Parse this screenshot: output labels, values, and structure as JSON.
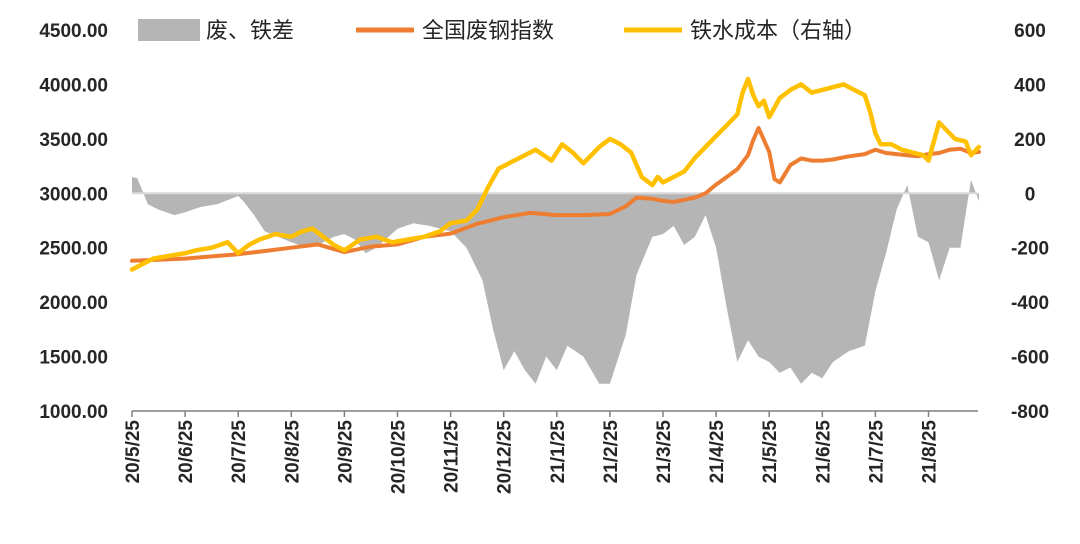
{
  "chart_data": {
    "type": "line",
    "title": "",
    "xlabel": "",
    "ylabel": "",
    "left_axis": {
      "ylim": [
        1000,
        4500
      ],
      "ticks": [
        "1000.00",
        "1500.00",
        "2000.00",
        "2500.00",
        "3000.00",
        "3500.00",
        "4000.00",
        "4500.00"
      ]
    },
    "right_axis": {
      "ylim": [
        -800,
        600
      ],
      "ticks": [
        "-800",
        "-600",
        "-400",
        "-200",
        "0",
        "200",
        "400",
        "600"
      ]
    },
    "x_ticks": [
      "20/5/25",
      "20/6/25",
      "20/7/25",
      "20/8/25",
      "20/9/25",
      "20/10/25",
      "20/11/25",
      "20/12/25",
      "21/1/25",
      "21/2/25",
      "21/3/25",
      "21/4/25",
      "21/5/25",
      "21/6/25",
      "21/7/25",
      "21/8/25"
    ],
    "x_range_months": [
      0,
      15.95
    ],
    "legend": {
      "placement": "top",
      "entries": [
        "废、铁差",
        "全国废钢指数",
        "铁水成本（右轴）"
      ]
    },
    "series": [
      {
        "name": "废、铁差",
        "kind": "area",
        "axis": "right",
        "color": "#b5b5b5",
        "x": [
          0,
          0.1,
          0.3,
          0.5,
          0.8,
          1,
          1.3,
          1.6,
          2,
          2.1,
          2.3,
          2.5,
          3,
          3.3,
          3.5,
          3.8,
          4,
          4.2,
          4.4,
          4.6,
          5,
          5.3,
          5.6,
          6,
          6.3,
          6.6,
          6.8,
          7,
          7.2,
          7.4,
          7.6,
          7.8,
          8,
          8.2,
          8.5,
          8.8,
          9,
          9.3,
          9.5,
          9.8,
          10,
          10.2,
          10.4,
          10.6,
          10.8,
          11,
          11.2,
          11.4,
          11.6,
          11.8,
          12,
          12.2,
          12.4,
          12.6,
          12.8,
          13,
          13.2,
          13.5,
          13.8,
          14,
          14.2,
          14.4,
          14.6,
          14.8,
          15,
          15.2,
          15.4,
          15.6,
          15.8,
          15.95
        ],
        "y": [
          60,
          55,
          -40,
          -60,
          -80,
          -70,
          -50,
          -40,
          -10,
          -30,
          -80,
          -140,
          -180,
          -200,
          -190,
          -160,
          -150,
          -170,
          -220,
          -200,
          -130,
          -110,
          -120,
          -140,
          -200,
          -320,
          -500,
          -650,
          -580,
          -650,
          -700,
          -600,
          -650,
          -560,
          -600,
          -700,
          -700,
          -520,
          -300,
          -160,
          -150,
          -120,
          -190,
          -160,
          -80,
          -200,
          -420,
          -620,
          -540,
          -600,
          -620,
          -660,
          -640,
          -700,
          -660,
          -680,
          -620,
          -580,
          -560,
          -360,
          -220,
          -60,
          30,
          -160,
          -180,
          -320,
          -200,
          -200,
          50,
          -30
        ]
      },
      {
        "name": "全国废钢指数",
        "kind": "line",
        "axis": "left",
        "color": "#ed7d31",
        "x": [
          0,
          0.5,
          1,
          1.5,
          2,
          2.5,
          3,
          3.5,
          4,
          4.5,
          5,
          5.5,
          6,
          6.5,
          7,
          7.5,
          8,
          8.5,
          9,
          9.3,
          9.5,
          9.8,
          10,
          10.2,
          10.4,
          10.6,
          10.8,
          11,
          11.2,
          11.4,
          11.6,
          11.7,
          11.8,
          12,
          12.1,
          12.2,
          12.4,
          12.6,
          12.8,
          13,
          13.2,
          13.5,
          13.8,
          14,
          14.2,
          14.4,
          14.6,
          14.8,
          15,
          15.2,
          15.4,
          15.6,
          15.8,
          15.95
        ],
        "y": [
          2380,
          2390,
          2400,
          2420,
          2440,
          2470,
          2500,
          2530,
          2460,
          2510,
          2530,
          2600,
          2630,
          2720,
          2780,
          2820,
          2800,
          2800,
          2810,
          2880,
          2960,
          2950,
          2930,
          2920,
          2940,
          2960,
          3000,
          3080,
          3150,
          3220,
          3350,
          3490,
          3600,
          3380,
          3130,
          3100,
          3260,
          3320,
          3300,
          3300,
          3310,
          3340,
          3360,
          3400,
          3370,
          3360,
          3350,
          3340,
          3360,
          3370,
          3400,
          3410,
          3370,
          3380
        ]
      },
      {
        "name": "铁水成本（右轴）",
        "kind": "line",
        "axis": "right",
        "color": "#ffc000",
        "x": [
          0,
          0.2,
          0.4,
          0.7,
          1,
          1.2,
          1.5,
          1.8,
          2,
          2.2,
          2.4,
          2.7,
          3,
          3.2,
          3.4,
          3.6,
          3.8,
          4,
          4.3,
          4.6,
          4.9,
          5.2,
          5.5,
          5.8,
          6,
          6.3,
          6.5,
          6.7,
          6.9,
          7.1,
          7.3,
          7.6,
          7.9,
          8.1,
          8.3,
          8.5,
          8.8,
          9,
          9.2,
          9.4,
          9.6,
          9.8,
          9.9,
          10,
          10.2,
          10.4,
          10.6,
          10.8,
          11,
          11.2,
          11.4,
          11.5,
          11.6,
          11.7,
          11.8,
          11.9,
          12,
          12.2,
          12.4,
          12.6,
          12.8,
          13,
          13.2,
          13.4,
          13.6,
          13.8,
          13.9,
          14,
          14.1,
          14.3,
          14.5,
          14.7,
          14.9,
          15,
          15.2,
          15.3,
          15.5,
          15.7,
          15.8,
          15.95
        ],
        "y": [
          -280,
          -260,
          -240,
          -230,
          -220,
          -210,
          -200,
          -180,
          -220,
          -190,
          -170,
          -150,
          -160,
          -140,
          -130,
          -160,
          -190,
          -210,
          -170,
          -160,
          -180,
          -170,
          -160,
          -140,
          -110,
          -100,
          -60,
          20,
          90,
          110,
          130,
          160,
          120,
          180,
          150,
          110,
          170,
          200,
          180,
          150,
          60,
          30,
          60,
          40,
          60,
          80,
          130,
          170,
          210,
          250,
          290,
          370,
          420,
          360,
          320,
          340,
          280,
          350,
          380,
          400,
          370,
          380,
          390,
          400,
          380,
          360,
          300,
          220,
          180,
          180,
          160,
          150,
          140,
          120,
          260,
          240,
          200,
          190,
          140,
          170
        ]
      }
    ]
  }
}
